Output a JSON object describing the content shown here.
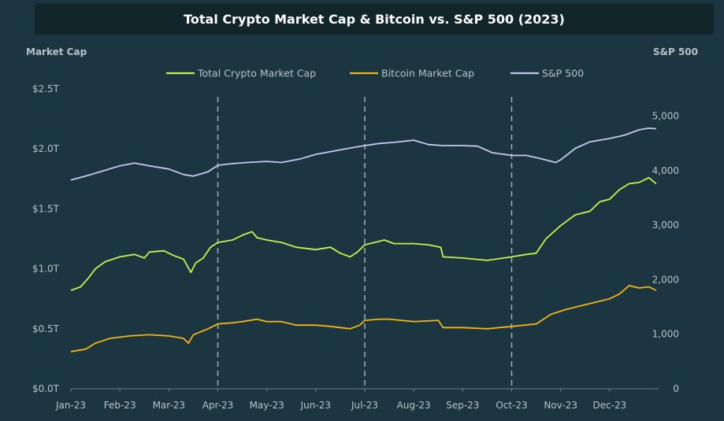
{
  "chart_data": {
    "type": "line",
    "title": "Total Crypto Market Cap & Bitcoin vs. S&P 500 (2023)",
    "left_axis_title": "Market Cap",
    "right_axis_title": "S&P 500",
    "x_tick_labels": [
      "Jan-23",
      "Feb-23",
      "Mar-23",
      "Apr-23",
      "May-23",
      "Jun-23",
      "Jul-23",
      "Aug-23",
      "Sep-23",
      "Oct-23",
      "Nov-23",
      "Dec-23"
    ],
    "left_ylim": [
      0,
      2.5
    ],
    "left_ticks": [
      0,
      0.5,
      1.0,
      1.5,
      2.0,
      2.5
    ],
    "left_tick_labels": [
      "$0.0T",
      "$0.5T",
      "$1.0T",
      "$1.5T",
      "$2.0T",
      "$2.5T"
    ],
    "right_ylim": [
      0,
      5500
    ],
    "right_ticks": [
      0,
      1000,
      2000,
      3000,
      4000,
      5000
    ],
    "right_tick_labels": [
      "0",
      "1,000",
      "2,000",
      "3,000",
      "4,000",
      "5,000"
    ],
    "vertical_markers_month_index": [
      3,
      6,
      9
    ],
    "legend_position": "top-center",
    "series": [
      {
        "name": "Total Crypto Market Cap",
        "axis": "left",
        "color": "#c8f04c",
        "points": [
          [
            0,
            0.82
          ],
          [
            0.2,
            0.85
          ],
          [
            0.35,
            0.92
          ],
          [
            0.5,
            1.0
          ],
          [
            0.7,
            1.06
          ],
          [
            1.0,
            1.1
          ],
          [
            1.3,
            1.12
          ],
          [
            1.5,
            1.09
          ],
          [
            1.6,
            1.14
          ],
          [
            1.9,
            1.15
          ],
          [
            2.1,
            1.11
          ],
          [
            2.3,
            1.08
          ],
          [
            2.45,
            0.97
          ],
          [
            2.55,
            1.05
          ],
          [
            2.7,
            1.09
          ],
          [
            2.85,
            1.18
          ],
          [
            3.0,
            1.22
          ],
          [
            3.3,
            1.24
          ],
          [
            3.5,
            1.28
          ],
          [
            3.7,
            1.31
          ],
          [
            3.8,
            1.26
          ],
          [
            4.0,
            1.24
          ],
          [
            4.3,
            1.22
          ],
          [
            4.6,
            1.18
          ],
          [
            5.0,
            1.16
          ],
          [
            5.3,
            1.18
          ],
          [
            5.5,
            1.13
          ],
          [
            5.7,
            1.1
          ],
          [
            5.85,
            1.14
          ],
          [
            6.0,
            1.2
          ],
          [
            6.2,
            1.22
          ],
          [
            6.4,
            1.24
          ],
          [
            6.6,
            1.21
          ],
          [
            7.0,
            1.21
          ],
          [
            7.3,
            1.2
          ],
          [
            7.55,
            1.18
          ],
          [
            7.6,
            1.1
          ],
          [
            8.0,
            1.09
          ],
          [
            8.5,
            1.07
          ],
          [
            9.0,
            1.1
          ],
          [
            9.3,
            1.12
          ],
          [
            9.5,
            1.13
          ],
          [
            9.7,
            1.25
          ],
          [
            10.0,
            1.36
          ],
          [
            10.3,
            1.45
          ],
          [
            10.6,
            1.48
          ],
          [
            10.8,
            1.56
          ],
          [
            11.0,
            1.58
          ],
          [
            11.2,
            1.66
          ],
          [
            11.4,
            1.71
          ],
          [
            11.6,
            1.72
          ],
          [
            11.8,
            1.76
          ],
          [
            11.95,
            1.71
          ]
        ]
      },
      {
        "name": "Bitcoin Market Cap",
        "axis": "left",
        "color": "#f4b314",
        "points": [
          [
            0,
            0.31
          ],
          [
            0.3,
            0.33
          ],
          [
            0.5,
            0.38
          ],
          [
            0.8,
            0.42
          ],
          [
            1.2,
            0.44
          ],
          [
            1.6,
            0.45
          ],
          [
            2.0,
            0.44
          ],
          [
            2.3,
            0.42
          ],
          [
            2.4,
            0.38
          ],
          [
            2.5,
            0.45
          ],
          [
            2.8,
            0.5
          ],
          [
            3.0,
            0.54
          ],
          [
            3.3,
            0.55
          ],
          [
            3.5,
            0.56
          ],
          [
            3.8,
            0.58
          ],
          [
            4.0,
            0.56
          ],
          [
            4.3,
            0.56
          ],
          [
            4.6,
            0.53
          ],
          [
            5.0,
            0.53
          ],
          [
            5.3,
            0.52
          ],
          [
            5.5,
            0.51
          ],
          [
            5.7,
            0.5
          ],
          [
            5.9,
            0.53
          ],
          [
            6.0,
            0.57
          ],
          [
            6.3,
            0.58
          ],
          [
            6.5,
            0.58
          ],
          [
            7.0,
            0.56
          ],
          [
            7.5,
            0.57
          ],
          [
            7.6,
            0.51
          ],
          [
            8.0,
            0.51
          ],
          [
            8.5,
            0.5
          ],
          [
            9.0,
            0.52
          ],
          [
            9.5,
            0.54
          ],
          [
            9.8,
            0.62
          ],
          [
            10.1,
            0.66
          ],
          [
            10.5,
            0.7
          ],
          [
            10.8,
            0.73
          ],
          [
            11.0,
            0.75
          ],
          [
            11.2,
            0.79
          ],
          [
            11.4,
            0.86
          ],
          [
            11.6,
            0.84
          ],
          [
            11.8,
            0.85
          ],
          [
            11.95,
            0.82
          ]
        ]
      },
      {
        "name": "S&P 500",
        "axis": "right",
        "color": "#c7c8ee",
        "points": [
          [
            0,
            3830
          ],
          [
            0.3,
            3900
          ],
          [
            0.6,
            3980
          ],
          [
            1.0,
            4090
          ],
          [
            1.3,
            4140
          ],
          [
            1.6,
            4090
          ],
          [
            2.0,
            4030
          ],
          [
            2.3,
            3930
          ],
          [
            2.5,
            3900
          ],
          [
            2.8,
            3980
          ],
          [
            3.0,
            4100
          ],
          [
            3.3,
            4130
          ],
          [
            3.6,
            4150
          ],
          [
            4.0,
            4170
          ],
          [
            4.3,
            4150
          ],
          [
            4.7,
            4220
          ],
          [
            5.0,
            4300
          ],
          [
            5.3,
            4350
          ],
          [
            5.6,
            4400
          ],
          [
            6.0,
            4460
          ],
          [
            6.3,
            4500
          ],
          [
            6.6,
            4520
          ],
          [
            7.0,
            4560
          ],
          [
            7.3,
            4480
          ],
          [
            7.6,
            4460
          ],
          [
            8.0,
            4460
          ],
          [
            8.3,
            4450
          ],
          [
            8.6,
            4330
          ],
          [
            9.0,
            4280
          ],
          [
            9.3,
            4280
          ],
          [
            9.6,
            4220
          ],
          [
            9.9,
            4150
          ],
          [
            10.0,
            4200
          ],
          [
            10.3,
            4410
          ],
          [
            10.6,
            4530
          ],
          [
            11.0,
            4590
          ],
          [
            11.3,
            4650
          ],
          [
            11.6,
            4750
          ],
          [
            11.8,
            4780
          ],
          [
            11.95,
            4770
          ]
        ]
      }
    ]
  }
}
